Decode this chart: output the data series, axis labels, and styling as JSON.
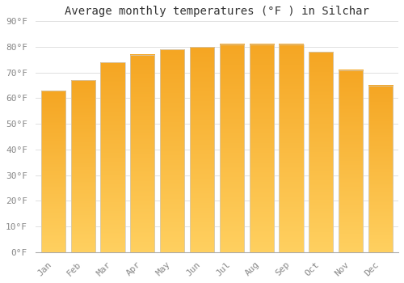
{
  "months": [
    "Jan",
    "Feb",
    "Mar",
    "Apr",
    "May",
    "Jun",
    "Jul",
    "Aug",
    "Sep",
    "Oct",
    "Nov",
    "Dec"
  ],
  "values": [
    63,
    67,
    74,
    77,
    79,
    80,
    81,
    81,
    81,
    78,
    71,
    65
  ],
  "bar_color_top": "#F5A623",
  "bar_color_bottom": "#FFD060",
  "bar_edge_color": "#CCCCCC",
  "title": "Average monthly temperatures (°F ) in Silchar",
  "ylim": [
    0,
    90
  ],
  "yticks": [
    0,
    10,
    20,
    30,
    40,
    50,
    60,
    70,
    80,
    90
  ],
  "ytick_labels": [
    "0°F",
    "10°F",
    "20°F",
    "30°F",
    "40°F",
    "50°F",
    "60°F",
    "70°F",
    "80°F",
    "90°F"
  ],
  "background_color": "#ffffff",
  "grid_color": "#e0e0e0",
  "title_fontsize": 10,
  "tick_fontsize": 8,
  "bar_width": 0.82
}
